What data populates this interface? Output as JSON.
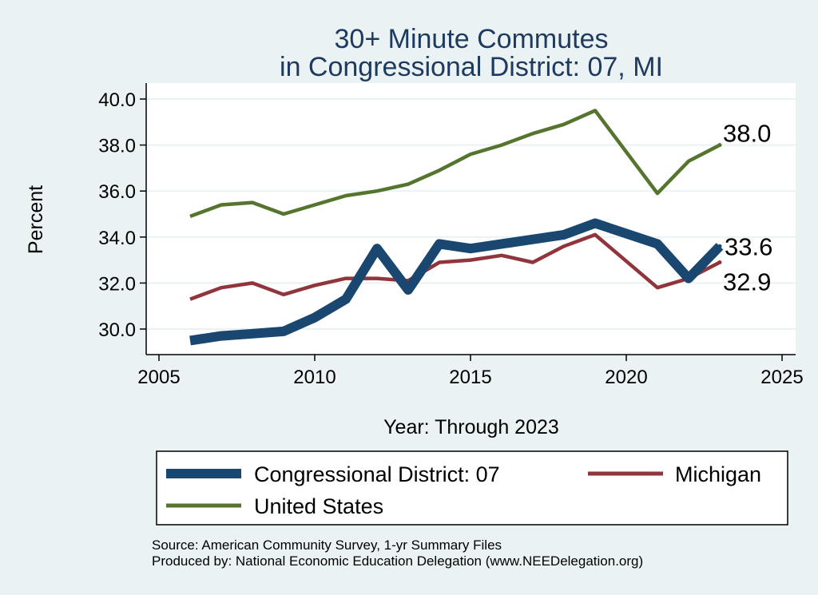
{
  "chart_data": {
    "type": "line",
    "title_lines": [
      "30+ Minute Commutes",
      "in Congressional District:  07, MI"
    ],
    "xlabel": "Year: Through 2023",
    "ylabel": "Percent",
    "xlim": [
      2005,
      2025
    ],
    "ylim": [
      29.0,
      40.5
    ],
    "x_ticks": [
      "2005",
      "2010",
      "2015",
      "2020",
      "2025"
    ],
    "y_ticks": [
      "30.0",
      "32.0",
      "34.0",
      "36.0",
      "38.0",
      "40.0"
    ],
    "grid": true,
    "legend_position": "bottom",
    "series": [
      {
        "name": "Congressional District:  07",
        "color": "#1a476f",
        "end_label": "33.6",
        "points": [
          [
            2006,
            29.5
          ],
          [
            2007,
            29.7
          ],
          [
            2008,
            29.8
          ],
          [
            2009,
            29.9
          ],
          [
            2010,
            30.5
          ],
          [
            2011,
            31.3
          ],
          [
            2012,
            33.5
          ],
          [
            2013,
            31.7
          ],
          [
            2014,
            33.7
          ],
          [
            2015,
            33.5
          ],
          [
            2016,
            33.7
          ],
          [
            2017,
            33.9
          ],
          [
            2018,
            34.1
          ],
          [
            2019,
            34.6
          ],
          [
            2021,
            33.7
          ],
          [
            2022,
            32.2
          ],
          [
            2023,
            33.6
          ]
        ]
      },
      {
        "name": "Michigan",
        "color": "#90353b",
        "end_label": "32.9",
        "points": [
          [
            2006,
            31.3
          ],
          [
            2007,
            31.8
          ],
          [
            2008,
            32.0
          ],
          [
            2009,
            31.5
          ],
          [
            2010,
            31.9
          ],
          [
            2011,
            32.2
          ],
          [
            2012,
            32.2
          ],
          [
            2013,
            32.1
          ],
          [
            2014,
            32.9
          ],
          [
            2015,
            33.0
          ],
          [
            2016,
            33.2
          ],
          [
            2017,
            32.9
          ],
          [
            2018,
            33.6
          ],
          [
            2019,
            34.1
          ],
          [
            2021,
            31.8
          ],
          [
            2022,
            32.2
          ],
          [
            2023,
            32.9
          ]
        ]
      },
      {
        "name": "United States",
        "color": "#55752f",
        "end_label": "38.0",
        "points": [
          [
            2006,
            34.9
          ],
          [
            2007,
            35.4
          ],
          [
            2008,
            35.5
          ],
          [
            2009,
            35.0
          ],
          [
            2010,
            35.4
          ],
          [
            2011,
            35.8
          ],
          [
            2012,
            36.0
          ],
          [
            2013,
            36.3
          ],
          [
            2014,
            36.9
          ],
          [
            2015,
            37.6
          ],
          [
            2016,
            38.0
          ],
          [
            2017,
            38.5
          ],
          [
            2018,
            38.9
          ],
          [
            2019,
            39.5
          ],
          [
            2021,
            35.9
          ],
          [
            2022,
            37.3
          ],
          [
            2023,
            38.0
          ]
        ]
      }
    ]
  },
  "source_lines": [
    "Source: American Community Survey, 1-yr Summary Files",
    "Produced by: National Economic Education Delegation (www.NEEDelegation.org)"
  ]
}
